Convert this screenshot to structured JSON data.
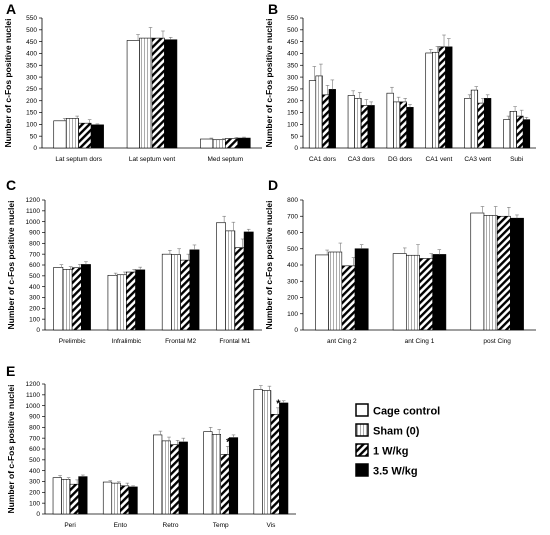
{
  "colors": {
    "cage": "#ffffff",
    "sham": "#f0f0f0",
    "w1": "#ffffff",
    "w35": "#000000",
    "stroke": "#000000"
  },
  "legend": [
    "Cage control",
    "Sham (0)",
    "1 W/kg",
    "3.5 W/kg"
  ],
  "ylabel": "Number of c-Fos positive nuclei",
  "chart_data": [
    {
      "type": "bar",
      "panel": "A",
      "ylim": [
        0,
        550
      ],
      "yticks": [
        0,
        50,
        100,
        150,
        200,
        250,
        300,
        350,
        400,
        450,
        500,
        550
      ],
      "categories": [
        "Lat septum dors",
        "Lat septum vent",
        "Med septum"
      ],
      "series": [
        {
          "values": [
            115,
            455,
            38
          ],
          "errors": [
            10,
            25,
            4
          ]
        },
        {
          "values": [
            125,
            465,
            35
          ],
          "errors": [
            10,
            45,
            4
          ]
        },
        {
          "values": [
            105,
            465,
            40
          ],
          "errors": [
            15,
            30,
            5
          ]
        },
        {
          "values": [
            98,
            458,
            42
          ],
          "errors": [
            4,
            10,
            4
          ]
        }
      ]
    },
    {
      "type": "bar",
      "panel": "B",
      "ylim": [
        0,
        550
      ],
      "yticks": [
        0,
        50,
        100,
        150,
        200,
        250,
        300,
        350,
        400,
        450,
        500,
        550
      ],
      "categories": [
        "CA1 dors",
        "CA3 dors",
        "DG dors",
        "CA1 vent",
        "CA3 vent",
        "Subi"
      ],
      "series": [
        {
          "values": [
            285,
            222,
            232,
            402,
            210,
            120
          ],
          "errors": [
            60,
            20,
            25,
            15,
            15,
            15
          ]
        },
        {
          "values": [
            305,
            210,
            195,
            405,
            245,
            155
          ],
          "errors": [
            50,
            25,
            20,
            25,
            15,
            20
          ]
        },
        {
          "values": [
            225,
            180,
            195,
            428,
            190,
            135
          ],
          "errors": [
            40,
            25,
            15,
            50,
            20,
            25
          ]
        },
        {
          "values": [
            248,
            180,
            172,
            428,
            210,
            120
          ],
          "errors": [
            40,
            15,
            12,
            35,
            15,
            10
          ]
        }
      ]
    },
    {
      "type": "bar",
      "panel": "C",
      "ylim": [
        0,
        1200
      ],
      "yticks": [
        0,
        100,
        200,
        300,
        400,
        500,
        600,
        700,
        800,
        900,
        1000,
        1100,
        1200
      ],
      "categories": [
        "Prelimbic",
        "Infralimbic",
        "Frontal M2",
        "Frontal M1"
      ],
      "series": [
        {
          "values": [
            578,
            505,
            700,
            990
          ],
          "errors": [
            25,
            20,
            35,
            60
          ]
        },
        {
          "values": [
            560,
            510,
            695,
            915
          ],
          "errors": [
            25,
            25,
            55,
            80
          ]
        },
        {
          "values": [
            575,
            535,
            645,
            760
          ],
          "errors": [
            30,
            25,
            55,
            80
          ]
        },
        {
          "values": [
            605,
            555,
            740,
            905
          ],
          "errors": [
            25,
            25,
            45,
            25
          ]
        }
      ]
    },
    {
      "type": "bar",
      "panel": "D",
      "ylim": [
        0,
        800
      ],
      "yticks": [
        0,
        100,
        200,
        300,
        400,
        500,
        600,
        700,
        800
      ],
      "categories": [
        "ant Cing 2",
        "ant Cing 1",
        "post Cing"
      ],
      "series": [
        {
          "values": [
            462,
            470,
            720
          ],
          "errors": [
            30,
            35,
            40
          ]
        },
        {
          "values": [
            480,
            460,
            705
          ],
          "errors": [
            55,
            65,
            55
          ]
        },
        {
          "values": [
            395,
            440,
            700
          ],
          "errors": [
            50,
            30,
            55
          ]
        },
        {
          "values": [
            500,
            465,
            688
          ],
          "errors": [
            25,
            30,
            20
          ]
        }
      ]
    },
    {
      "type": "bar",
      "panel": "E",
      "ylim": [
        0,
        1200
      ],
      "yticks": [
        0,
        100,
        200,
        300,
        400,
        500,
        600,
        700,
        800,
        900,
        1000,
        1100,
        1200
      ],
      "categories": [
        "Peri",
        "Ento",
        "Retro",
        "Temp",
        "Vis"
      ],
      "series": [
        {
          "values": [
            335,
            295,
            730,
            760,
            1150
          ],
          "errors": [
            20,
            12,
            35,
            40,
            35
          ]
        },
        {
          "values": [
            320,
            285,
            675,
            735,
            1140
          ],
          "errors": [
            15,
            12,
            35,
            45,
            40
          ]
        },
        {
          "values": [
            275,
            260,
            640,
            550,
            920
          ],
          "errors": [
            40,
            25,
            40,
            75,
            60
          ]
        },
        {
          "values": [
            345,
            250,
            665,
            705,
            1025
          ],
          "errors": [
            15,
            10,
            35,
            25,
            20
          ]
        }
      ],
      "annotations": [
        {
          "text": "*",
          "category": "Temp",
          "series": 2
        },
        {
          "text": "*",
          "category": "Vis",
          "series": 2
        }
      ]
    }
  ]
}
